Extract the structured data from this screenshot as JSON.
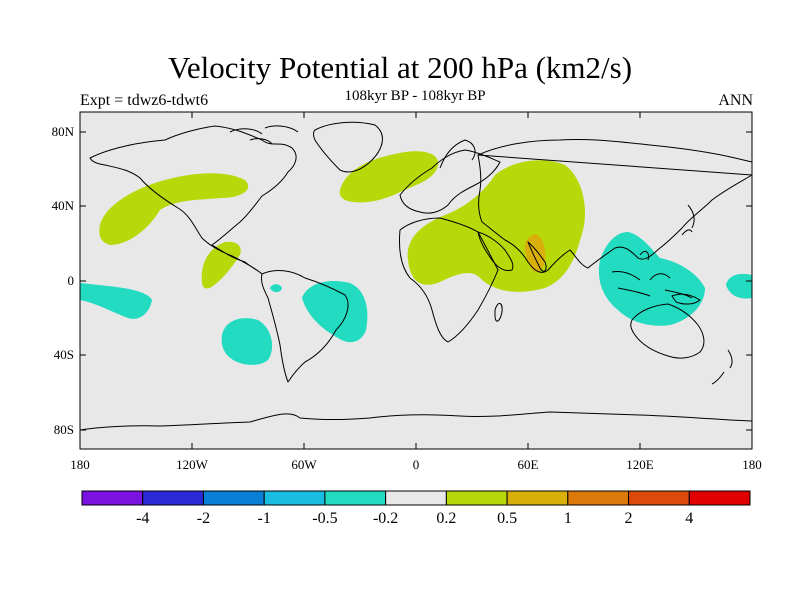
{
  "title": "Velocity Potential at 200 hPa (km2/s)",
  "subtitle": "108kyr BP - 108kyr BP",
  "left_label": "Expt = tdwz6-tdwt6",
  "right_label": "ANN",
  "lat_ticks": [
    "80N",
    "40N",
    "0",
    "40S",
    "80S"
  ],
  "lon_ticks": [
    "180",
    "120W",
    "60W",
    "0",
    "60E",
    "120E",
    "180"
  ],
  "colorbar": {
    "colors": [
      "#7a12e0",
      "#2a2ad6",
      "#0a7fd8",
      "#18bde0",
      "#22dbc0",
      "#e8e8e8",
      "#b7d90a",
      "#d9b00a",
      "#db7a0a",
      "#db4a0a",
      "#e00000"
    ],
    "labels": [
      "-4",
      "-2",
      "-1",
      "-0.5",
      "-0.2",
      "0.2",
      "0.5",
      "1",
      "2",
      "4"
    ]
  },
  "map_colors": {
    "background": "#e8e8e8",
    "positive_low": "#b7d90a",
    "positive_mid": "#d9b00a",
    "negative_low": "#22dbc0"
  }
}
